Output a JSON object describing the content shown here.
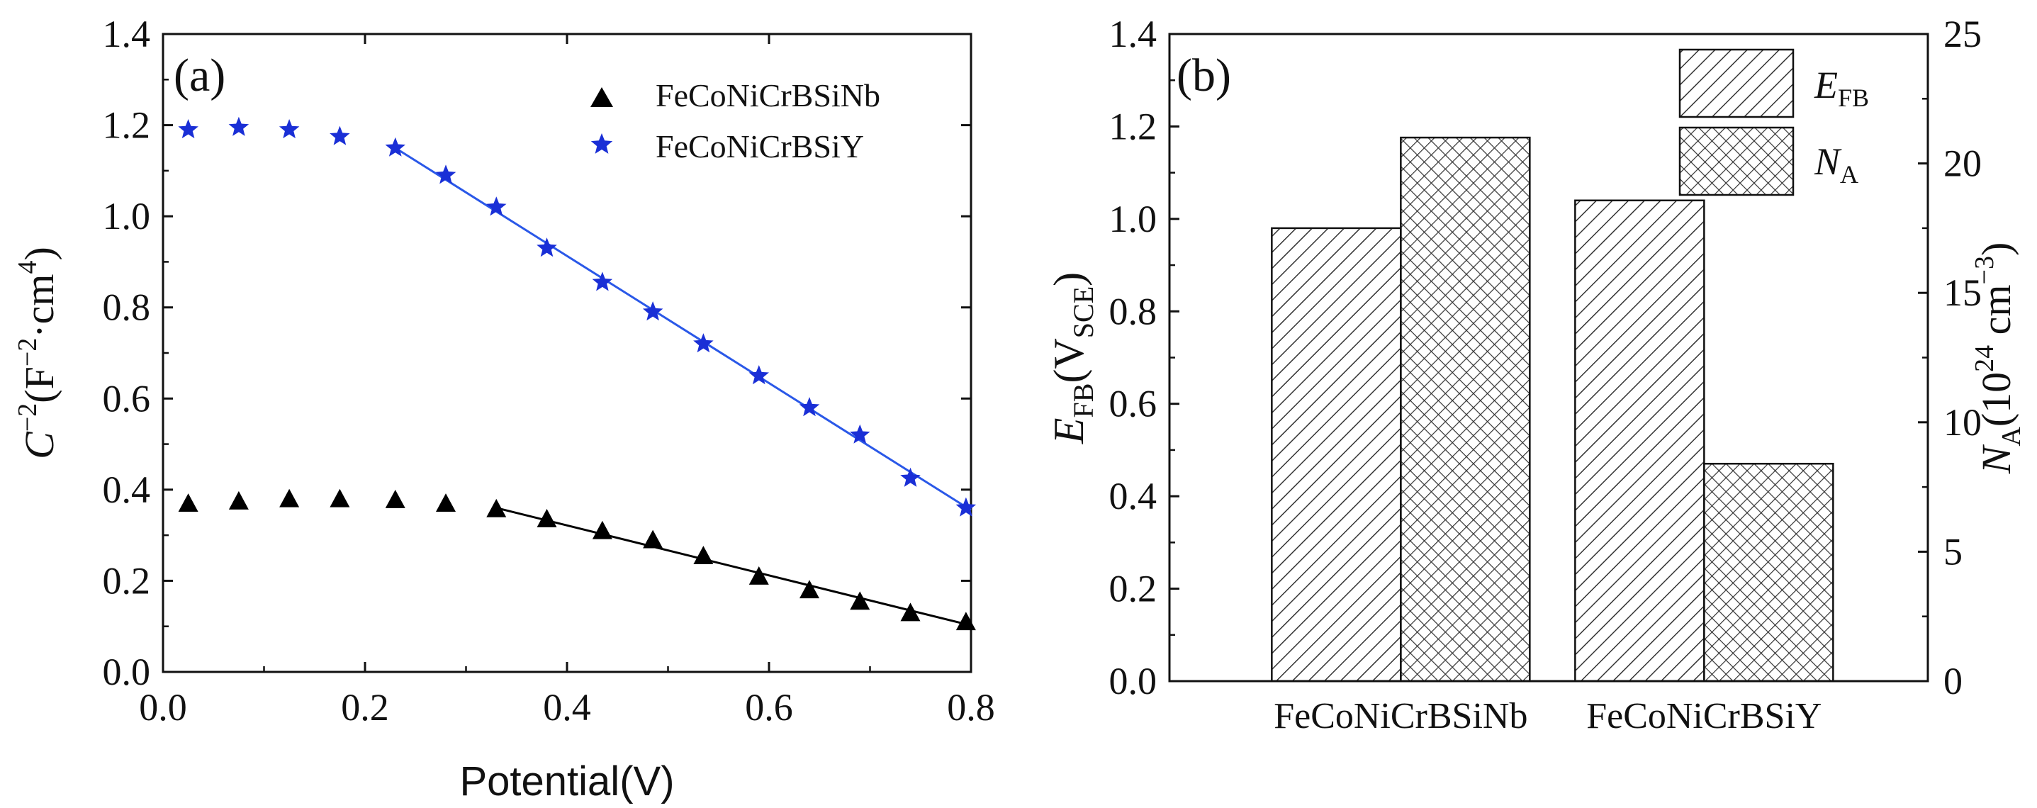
{
  "chart_data": [
    {
      "panel_label": "(a)",
      "type": "scatter",
      "xlabel": "Potential(V)",
      "ylabel_parts": {
        "base": "C",
        "exp1": "−2",
        "mid": "(F",
        "exp2": "−2",
        "mid2": "·cm",
        "exp3": "4",
        "end": ")"
      },
      "xlim": [
        0.0,
        0.8
      ],
      "ylim": [
        0.0,
        1.4
      ],
      "xticks": [
        "0.0",
        "0.2",
        "0.4",
        "0.6",
        "0.8"
      ],
      "yticks": [
        "0.0",
        "0.2",
        "0.4",
        "0.6",
        "0.8",
        "1.0",
        "1.2",
        "1.4"
      ],
      "xtick_values": [
        0.0,
        0.2,
        0.4,
        0.6,
        0.8
      ],
      "ytick_values": [
        0.0,
        0.2,
        0.4,
        0.6,
        0.8,
        1.0,
        1.2,
        1.4
      ],
      "series": [
        {
          "name": "FeCoNiCrBSiNb",
          "marker": "triangle",
          "color": "#000000",
          "x": [
            0.025,
            0.075,
            0.125,
            0.175,
            0.23,
            0.28,
            0.33,
            0.38,
            0.435,
            0.485,
            0.535,
            0.59,
            0.64,
            0.69,
            0.74,
            0.795
          ],
          "y": [
            0.37,
            0.375,
            0.38,
            0.38,
            0.378,
            0.37,
            0.358,
            0.336,
            0.31,
            0.29,
            0.255,
            0.21,
            0.18,
            0.155,
            0.13,
            0.11
          ],
          "fit": {
            "x": [
              0.33,
              0.8
            ],
            "y": [
              0.36,
              0.102
            ]
          }
        },
        {
          "name": "FeCoNiCrBSiY",
          "marker": "star",
          "color": "#1a2fd6",
          "x": [
            0.025,
            0.075,
            0.125,
            0.175,
            0.23,
            0.28,
            0.33,
            0.38,
            0.435,
            0.485,
            0.535,
            0.59,
            0.64,
            0.69,
            0.74,
            0.795
          ],
          "y": [
            1.19,
            1.195,
            1.19,
            1.175,
            1.15,
            1.09,
            1.02,
            0.93,
            0.855,
            0.79,
            0.72,
            0.65,
            0.58,
            0.52,
            0.425,
            0.36
          ],
          "fit": {
            "x": [
              0.23,
              0.8
            ],
            "y": [
              1.15,
              0.355
            ]
          }
        }
      ]
    },
    {
      "panel_label": "(b)",
      "type": "bar",
      "categories": [
        "FeCoNiCrBSiNb",
        "FeCoNiCrBSiY"
      ],
      "series": [
        {
          "name": "E_FB",
          "legend_main": "E",
          "legend_sub": "FB",
          "axis": "left",
          "pattern": "diagonal-hatch",
          "values": [
            0.98,
            1.04
          ]
        },
        {
          "name": "N_A",
          "legend_main": "N",
          "legend_sub": "A",
          "axis": "right",
          "pattern": "cross-hatch",
          "values": [
            21.0,
            8.4
          ]
        }
      ],
      "ylabel_left": {
        "main": "E",
        "sub1": "FB",
        "mid": "(V",
        "sub2": "SCE",
        "end": ")"
      },
      "ylabel_right": {
        "main": "N",
        "sub1": "A",
        "mid": "(10",
        "sup": "24",
        "mid2": " cm",
        "sup2": "−3",
        "end": ")"
      },
      "ylim_left": [
        0.0,
        1.4
      ],
      "ylim_right": [
        0,
        25
      ],
      "yticks_left": [
        "0.0",
        "0.2",
        "0.4",
        "0.6",
        "0.8",
        "1.0",
        "1.2",
        "1.4"
      ],
      "ytick_values_left": [
        0.0,
        0.2,
        0.4,
        0.6,
        0.8,
        1.0,
        1.2,
        1.4
      ],
      "yticks_right": [
        "0",
        "5",
        "10",
        "15",
        "20",
        "25"
      ],
      "ytick_values_right": [
        0,
        5,
        10,
        15,
        20,
        25
      ]
    }
  ]
}
